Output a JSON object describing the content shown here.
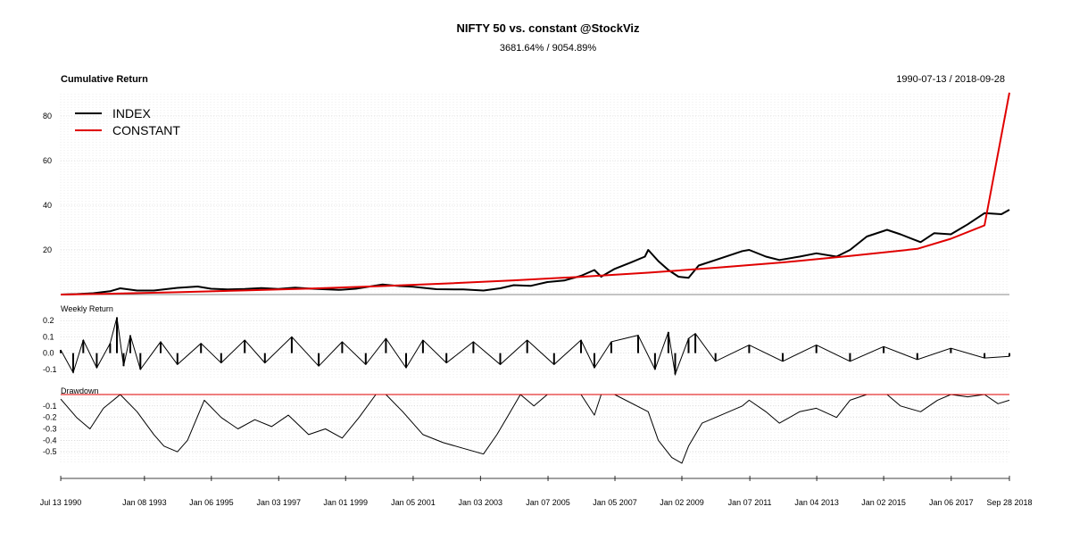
{
  "chart_data": {
    "type": "line",
    "title": "NIFTY 50 vs. constant @StockViz",
    "subtitle": "3681.64% / 9054.89%",
    "date_range_label": "1990-07-13 / 2018-09-28",
    "x_start": "1990-07-13",
    "x_end": "2018-09-28",
    "x_tick_labels": [
      "Jul 13 1990",
      "Jan 08 1993",
      "Jan 06 1995",
      "Jan 03 1997",
      "Jan 01 1999",
      "Jan 05 2001",
      "Jan 03 2003",
      "Jan 07 2005",
      "Jan 05 2007",
      "Jan 02 2009",
      "Jan 07 2011",
      "Jan 04 2013",
      "Jan 02 2015",
      "Jan 06 2017",
      "Sep 28 2018"
    ],
    "x_tick_years": [
      1990.53,
      1993.02,
      1995.01,
      1997.01,
      1999.0,
      2001.01,
      2003.01,
      2005.02,
      2007.01,
      2009.0,
      2011.02,
      2013.01,
      2015.0,
      2017.01,
      2018.74
    ],
    "panels": [
      {
        "title": "Cumulative Return",
        "ylim": [
          0,
          90
        ],
        "y_ticks": [
          20,
          40,
          60,
          80
        ],
        "legend_position": "top-left",
        "grid": true,
        "series": [
          {
            "name": "INDEX",
            "color": "#000000",
            "x": [
              1990.53,
              1991.0,
              1991.5,
              1992.0,
              1992.3,
              1992.8,
              1993.3,
              1994.0,
              1994.6,
              1995.0,
              1995.5,
              1996.0,
              1996.5,
              1997.0,
              1997.5,
              1998.0,
              1998.8,
              1999.3,
              2000.1,
              2000.6,
              2001.0,
              2001.7,
              2002.5,
              2003.1,
              2003.6,
              2004.0,
              2004.5,
              2005.0,
              2005.5,
              2006.0,
              2006.4,
              2006.6,
              2007.0,
              2007.5,
              2007.9,
              2008.0,
              2008.3,
              2008.6,
              2008.9,
              2009.2,
              2009.5,
              2010.0,
              2010.8,
              2011.0,
              2011.5,
              2011.9,
              2012.5,
              2013.0,
              2013.6,
              2014.0,
              2014.5,
              2015.1,
              2015.5,
              2016.1,
              2016.5,
              2017.0,
              2017.5,
              2018.0,
              2018.5,
              2018.74
            ],
            "values": [
              0.0,
              0.2,
              0.6,
              1.5,
              2.8,
              1.8,
              1.8,
              3.0,
              3.6,
              2.6,
              2.3,
              2.5,
              2.9,
              2.5,
              3.1,
              2.6,
              2.1,
              2.6,
              4.5,
              3.8,
              3.5,
              2.4,
              2.3,
              1.8,
              2.8,
              4.2,
              3.9,
              5.6,
              6.3,
              8.4,
              11.0,
              8.0,
              11.5,
              14.5,
              17.0,
              20.0,
              15.0,
              11.0,
              8.0,
              7.5,
              13.0,
              15.5,
              19.5,
              20.0,
              17.0,
              15.5,
              17.0,
              18.5,
              17.0,
              20.0,
              26.0,
              29.0,
              27.0,
              23.5,
              27.5,
              27.0,
              31.5,
              36.5,
              36.0,
              38.0
            ]
          },
          {
            "name": "CONSTANT",
            "color": "#e00000",
            "x": [
              1990.53,
              1992.0,
              1994.0,
              1996.0,
              1998.0,
              2000.0,
              2002.0,
              2004.0,
              2006.0,
              2008.0,
              2010.0,
              2012.0,
              2014.0,
              2016.0,
              2017.0,
              2018.0,
              2018.74
            ],
            "values": [
              0.0,
              0.37,
              1.05,
              1.83,
              2.73,
              3.77,
              4.97,
              6.36,
              7.96,
              9.81,
              12.0,
              14.4,
              17.3,
              20.5,
              25.0,
              31.0,
              90.5
            ]
          }
        ]
      },
      {
        "title": "Weekly Return",
        "ylim": [
          -0.15,
          0.25
        ],
        "y_ticks": [
          -0.1,
          0.0,
          0.1,
          0.2
        ],
        "y_tick_labels": [
          "-0.1",
          "0.0",
          "0.1",
          "0.2"
        ],
        "grid": true,
        "series": [
          {
            "name": "",
            "color": "#000000",
            "x": [
              1990.53,
              1990.9,
              1991.2,
              1991.6,
              1992.0,
              1992.2,
              1992.4,
              1992.6,
              1992.9,
              1993.5,
              1994.0,
              1994.7,
              1995.3,
              1996.0,
              1996.6,
              1997.4,
              1998.2,
              1998.9,
              1999.6,
              2000.2,
              2000.8,
              2001.3,
              2002.0,
              2002.8,
              2003.6,
              2004.4,
              2005.2,
              2006.0,
              2006.4,
              2006.9,
              2007.7,
              2008.2,
              2008.6,
              2008.8,
              2009.2,
              2009.4,
              2010.0,
              2011.0,
              2012.0,
              2013.0,
              2014.0,
              2015.0,
              2016.0,
              2017.0,
              2018.0,
              2018.74
            ],
            "values": [
              0.02,
              -0.12,
              0.08,
              -0.09,
              0.06,
              0.22,
              -0.08,
              0.11,
              -0.1,
              0.07,
              -0.07,
              0.06,
              -0.06,
              0.08,
              -0.06,
              0.1,
              -0.08,
              0.07,
              -0.07,
              0.09,
              -0.09,
              0.08,
              -0.06,
              0.07,
              -0.07,
              0.08,
              -0.07,
              0.08,
              -0.09,
              0.07,
              0.11,
              -0.1,
              0.13,
              -0.13,
              0.09,
              0.12,
              -0.05,
              0.05,
              -0.05,
              0.05,
              -0.05,
              0.04,
              -0.04,
              0.03,
              -0.03,
              -0.02
            ]
          }
        ]
      },
      {
        "title": "Drawdown",
        "ylim": [
          -0.6,
          0.0
        ],
        "y_ticks": [
          -0.1,
          -0.2,
          -0.3,
          -0.4,
          -0.5
        ],
        "y_tick_labels": [
          "-0.1",
          "-0.2",
          "-0.3",
          "-0.4",
          "-0.5"
        ],
        "grid": true,
        "series": [
          {
            "name": "",
            "color": "#000000",
            "x": [
              1990.53,
              1991.0,
              1991.4,
              1991.8,
              1992.3,
              1992.8,
              1993.3,
              1993.6,
              1994.0,
              1994.3,
              1994.8,
              1995.3,
              1995.8,
              1996.3,
              1996.8,
              1997.3,
              1997.9,
              1998.4,
              1998.9,
              1999.4,
              1999.9,
              2000.2,
              2000.7,
              2001.3,
              2001.9,
              2002.5,
              2003.1,
              2003.5,
              2003.8,
              2004.2,
              2004.6,
              2005.0,
              2006.0,
              2006.4,
              2006.6,
              2007.0,
              2008.0,
              2008.3,
              2008.7,
              2009.0,
              2009.2,
              2009.6,
              2010.0,
              2010.8,
              2011.0,
              2011.5,
              2011.9,
              2012.5,
              2013.0,
              2013.6,
              2014.0,
              2014.5,
              2015.1,
              2015.5,
              2016.1,
              2016.6,
              2017.0,
              2017.5,
              2018.0,
              2018.4,
              2018.74
            ],
            "values": [
              -0.04,
              -0.2,
              -0.3,
              -0.12,
              0.0,
              -0.15,
              -0.35,
              -0.45,
              -0.5,
              -0.4,
              -0.05,
              -0.2,
              -0.3,
              -0.22,
              -0.28,
              -0.18,
              -0.35,
              -0.3,
              -0.38,
              -0.2,
              0.0,
              0.0,
              -0.15,
              -0.35,
              -0.42,
              -0.47,
              -0.52,
              -0.35,
              -0.2,
              0.0,
              -0.1,
              0.0,
              0.0,
              -0.18,
              0.0,
              0.0,
              -0.15,
              -0.4,
              -0.55,
              -0.6,
              -0.45,
              -0.25,
              -0.2,
              -0.1,
              -0.05,
              -0.15,
              -0.25,
              -0.15,
              -0.12,
              -0.2,
              -0.05,
              0.0,
              0.0,
              -0.1,
              -0.15,
              -0.05,
              0.0,
              -0.02,
              0.0,
              -0.08,
              -0.05
            ]
          },
          {
            "name": "",
            "color": "#e00000",
            "x": [
              1990.53,
              2018.74
            ],
            "values": [
              0.0,
              0.0
            ]
          }
        ]
      }
    ]
  }
}
